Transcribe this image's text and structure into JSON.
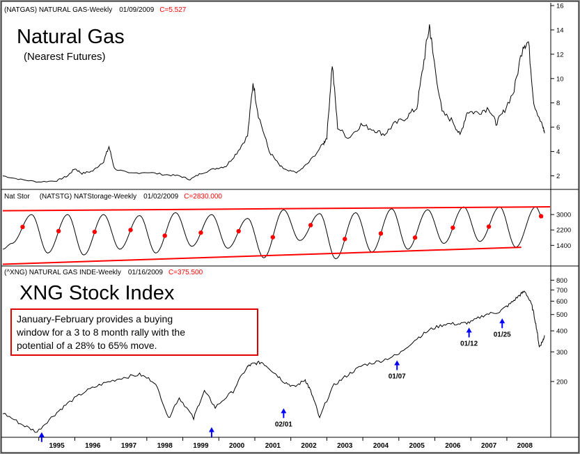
{
  "panels": {
    "natgas": {
      "header_symbol": "(NATGAS) NATURAL GAS-Weekly",
      "header_date": "01/09/2009",
      "header_close": "C=5.527",
      "title": "Natural Gas",
      "subtitle": "(Nearest Futures)"
    },
    "storage": {
      "header_left": "Nat Stor",
      "header_symbol": "(NATSTG) NATStorage-Weekly",
      "header_date": "01/02/2009",
      "header_close": "C=2830.000"
    },
    "xng": {
      "header_symbol": "(^XNG) NATURAL GAS INDE-Weekly",
      "header_date": "01/16/2009",
      "header_close": "C=375.500",
      "title": "XNG Stock Index",
      "note_lines": [
        "January-February provides a buying",
        "window for a 3 to 8 month rally with the",
        "potential of a 28% to 65% move."
      ]
    }
  },
  "colors": {
    "price": "#000000",
    "accent": "#ff0000",
    "arrow": "#0000ff",
    "frame": "#9a9a9a"
  },
  "chart_data": [
    {
      "type": "line",
      "name": "natgas",
      "x": [
        1994.0,
        1994.5,
        1995.0,
        1995.5,
        1995.8,
        1996.0,
        1996.2,
        1996.5,
        1996.8,
        1996.95,
        1997.1,
        1997.5,
        1998.0,
        1998.5,
        1998.9,
        1999.2,
        1999.5,
        1999.9,
        2000.2,
        2000.5,
        2000.8,
        2000.95,
        2001.1,
        2001.4,
        2001.7,
        2001.9,
        2002.2,
        2002.5,
        2002.9,
        2003.0,
        2003.15,
        2003.3,
        2003.6,
        2003.95,
        2004.3,
        2004.6,
        2004.85,
        2005.2,
        2005.5,
        2005.7,
        2005.85,
        2005.95,
        2006.2,
        2006.5,
        2006.7,
        2006.9,
        2007.2,
        2007.5,
        2007.7,
        2007.9,
        2008.2,
        2008.45,
        2008.6,
        2008.75,
        2009.0,
        2009.05
      ],
      "y": [
        2.0,
        1.7,
        1.5,
        1.6,
        2.0,
        2.6,
        2.2,
        2.4,
        3.2,
        4.4,
        2.6,
        2.2,
        2.3,
        2.1,
        2.0,
        1.7,
        2.2,
        2.6,
        2.8,
        3.9,
        5.3,
        9.7,
        7.0,
        4.0,
        2.8,
        2.4,
        2.3,
        3.1,
        4.6,
        5.2,
        11.2,
        6.0,
        5.1,
        6.2,
        5.8,
        5.4,
        6.2,
        6.8,
        7.6,
        11.5,
        14.4,
        12.0,
        7.2,
        6.5,
        5.3,
        7.3,
        7.2,
        7.6,
        6.3,
        7.2,
        9.0,
        12.8,
        13.0,
        8.0,
        6.0,
        5.5
      ],
      "y_scale": "linear",
      "ylim": [
        1,
        16
      ],
      "yticks": [
        2,
        4,
        6,
        8,
        10,
        12,
        14,
        16
      ]
    },
    {
      "type": "line",
      "name": "storage",
      "x": [
        1994.0,
        1994.25,
        1994.8,
        1995.25,
        1995.8,
        1996.25,
        1996.8,
        1997.25,
        1997.8,
        1998.25,
        1998.8,
        1999.25,
        1999.8,
        2000.25,
        2000.8,
        2001.25,
        2001.8,
        2002.25,
        2002.8,
        2003.25,
        2003.8,
        2004.25,
        2004.8,
        2005.25,
        2005.8,
        2006.25,
        2006.8,
        2007.25,
        2007.8,
        2008.25,
        2008.8,
        2009.0
      ],
      "y": [
        1200,
        1500,
        3000,
        1000,
        3000,
        900,
        3000,
        1200,
        2950,
        1000,
        3100,
        1350,
        3000,
        1250,
        2800,
        750,
        3250,
        1650,
        3050,
        700,
        3100,
        1050,
        3300,
        1200,
        3250,
        1500,
        3400,
        1600,
        3400,
        1300,
        3400,
        2830
      ],
      "markers_x": [
        1994.55,
        1995.55,
        1996.55,
        1997.55,
        1998.5,
        1999.5,
        2000.55,
        2001.5,
        2002.55,
        2003.5,
        2004.5,
        2005.45,
        2006.5,
        2007.5,
        2008.95
      ],
      "ylim": [
        400,
        3800
      ],
      "yticks": [
        1400,
        2200,
        3000
      ],
      "trendlines": [
        {
          "x": [
            1994.0,
            2009.2
          ],
          "y": [
            3200,
            3400
          ]
        },
        {
          "x": [
            1994.0,
            2008.4
          ],
          "y": [
            420,
            1300
          ]
        }
      ]
    },
    {
      "type": "line",
      "name": "xng",
      "x": [
        1994.0,
        1994.5,
        1994.95,
        1995.4,
        1995.8,
        1996.3,
        1996.8,
        1997.3,
        1997.8,
        1998.2,
        1998.6,
        1998.9,
        1999.3,
        1999.6,
        1999.9,
        2000.4,
        2000.8,
        2000.95,
        2001.2,
        2001.5,
        2001.8,
        2002.1,
        2002.4,
        2002.55,
        2002.8,
        2003.2,
        2003.6,
        2004.0,
        2004.5,
        2005.0,
        2005.5,
        2005.9,
        2006.3,
        2006.7,
        2007.0,
        2007.4,
        2007.8,
        2008.1,
        2008.35,
        2008.5,
        2008.7,
        2008.82,
        2008.9,
        2009.0,
        2009.05
      ],
      "y": [
        130,
        112,
        100,
        125,
        148,
        175,
        195,
        210,
        220,
        200,
        120,
        160,
        120,
        175,
        140,
        175,
        245,
        255,
        260,
        230,
        200,
        185,
        205,
        175,
        120,
        190,
        220,
        250,
        265,
        290,
        360,
        410,
        440,
        440,
        450,
        500,
        520,
        580,
        650,
        690,
        560,
        420,
        320,
        350,
        375.5
      ],
      "y_scale": "log",
      "ylim": [
        95,
        850
      ],
      "yticks": [
        200,
        300,
        400,
        500,
        600,
        700,
        800
      ],
      "arrows": [
        {
          "x": 1995.08,
          "y": 98,
          "label": ""
        },
        {
          "x": 1999.8,
          "y": 105,
          "label": ""
        },
        {
          "x": 2001.8,
          "y": 136,
          "label": "02/01"
        },
        {
          "x": 2004.95,
          "y": 262,
          "label": "01/07"
        },
        {
          "x": 2006.95,
          "y": 410,
          "label": "01/12"
        },
        {
          "x": 2007.87,
          "y": 465,
          "label": "01/25"
        }
      ]
    }
  ],
  "x_axis": {
    "years": [
      "1995",
      "1996",
      "1997",
      "1998",
      "1999",
      "2000",
      "2001",
      "2002",
      "2003",
      "2004",
      "2005",
      "2006",
      "2007",
      "2008"
    ]
  }
}
